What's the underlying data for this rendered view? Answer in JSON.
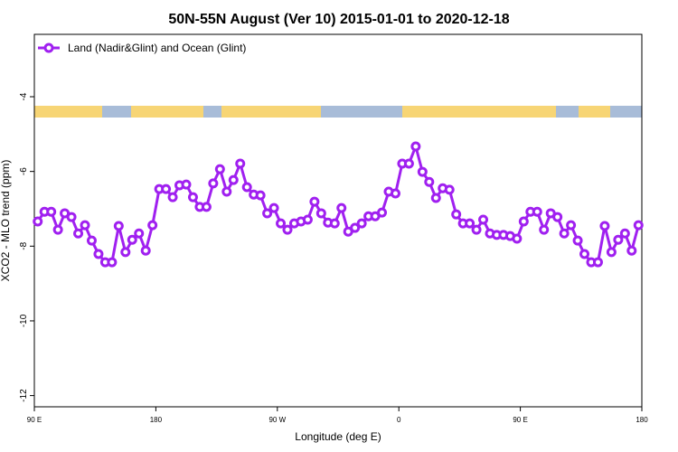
{
  "chart_data": {
    "type": "line",
    "title": "50N-55N August (Ver 10)   2015-01-01 to 2020-12-18",
    "x_label": "Longitude (deg E)",
    "y_label": "XCO2 - MLO trend (ppm)",
    "legend": "top-left",
    "x": [
      92.5,
      97.5,
      102.5,
      107.5,
      112.5,
      117.5,
      122.5,
      127.5,
      132.5,
      137.5,
      142.5,
      147.5,
      152.5,
      157.5,
      162.5,
      167.5,
      172.5,
      177.5,
      182.5,
      187.5,
      192.5,
      197.5,
      202.5,
      207.5,
      212.5,
      217.5,
      222.5,
      227.5,
      232.5,
      237.5,
      242.5,
      247.5,
      252.5,
      257.5,
      262.5,
      267.5,
      272.5,
      277.5,
      282.5,
      287.5,
      292.5,
      297.5,
      302.5,
      307.5,
      312.5,
      317.5,
      322.5,
      327.5,
      332.5,
      337.5,
      342.5,
      347.5,
      352.5,
      357.5,
      362.5,
      367.5,
      372.5,
      377.5,
      382.5,
      387.5,
      392.5,
      397.5,
      402.5,
      407.5,
      412.5,
      417.5,
      422.5,
      427.5,
      432.5,
      437.5,
      442.5,
      447.5,
      452.5,
      457.5,
      462.5,
      467.5,
      472.5,
      477.5,
      482.5,
      487.5,
      492.5,
      497.5,
      502.5,
      507.5,
      512.5,
      517.5,
      522.5,
      527.5,
      532.5,
      537.5
    ],
    "series": [
      {
        "name": "Land (Nadir&Glint) and Ocean (Glint)",
        "color": "#a020f0",
        "values": [
          -7.34,
          -7.08,
          -7.08,
          -7.56,
          -7.12,
          -7.22,
          -7.66,
          -7.44,
          -7.85,
          -8.21,
          -8.43,
          -8.43,
          -7.46,
          -8.16,
          -7.83,
          -7.66,
          -8.12,
          -7.44,
          -6.47,
          -6.47,
          -6.69,
          -6.37,
          -6.35,
          -6.69,
          -6.95,
          -6.95,
          -6.32,
          -5.94,
          -6.54,
          -6.23,
          -5.79,
          -6.42,
          -6.62,
          -6.64,
          -7.12,
          -6.98,
          -7.39,
          -7.56,
          -7.39,
          -7.34,
          -7.29,
          -6.81,
          -7.12,
          -7.37,
          -7.39,
          -6.98,
          -7.61,
          -7.51,
          -7.39,
          -7.2,
          -7.2,
          -7.1,
          -6.54,
          -6.59,
          -5.79,
          -5.79,
          -5.33,
          -6.01,
          -6.28,
          -6.71,
          -6.45,
          -6.49,
          -7.15,
          -7.39,
          -7.39,
          -7.56,
          -7.29,
          -7.66,
          -7.7,
          -7.7,
          -7.73,
          -7.8,
          -7.34,
          -7.08,
          -7.08,
          -7.56,
          -7.12,
          -7.22,
          -7.66,
          -7.44,
          -7.85,
          -8.21,
          -8.43,
          -8.43,
          -7.46,
          -8.16,
          -7.83,
          -7.66,
          -8.12,
          -7.44
        ]
      }
    ],
    "xlim": [
      90,
      540
    ],
    "xticks": [
      {
        "value": 90,
        "label": "90 E"
      },
      {
        "value": 180,
        "label": "180"
      },
      {
        "value": 270,
        "label": "90 W"
      },
      {
        "value": 360,
        "label": "0"
      },
      {
        "value": 450,
        "label": "90 E"
      },
      {
        "value": 540,
        "label": "180"
      }
    ],
    "ylim": [
      -12.3,
      -2.33
    ],
    "yticks": [
      -12,
      -10,
      -8,
      -6,
      -4
    ]
  }
}
